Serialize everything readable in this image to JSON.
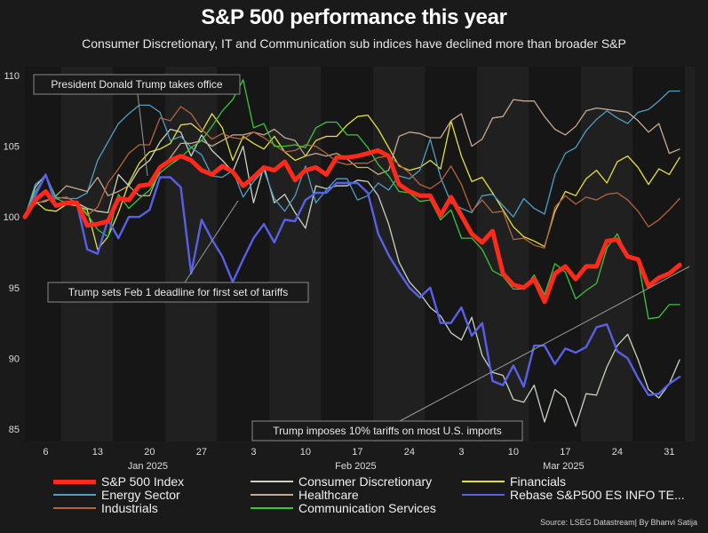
{
  "header": {
    "title": "S&P 500 performance this year",
    "subtitle": "Consumer Discretionary, IT and Communication sub indices have declined more than broader S&P"
  },
  "source": "Source: LSEG Datastream| By Bhanvi Satija",
  "chart_data": {
    "type": "line",
    "title": "S&P 500 performance this year",
    "subtitle": "Consumer Discretionary, IT and Communication sub indices have declined more than broader S&P",
    "xlabel": "",
    "ylabel": "",
    "ylim": [
      84,
      110.5
    ],
    "yticks": [
      85,
      90,
      95,
      100,
      105,
      110
    ],
    "grid": false,
    "background_bands": "alternating weekly shading",
    "x_ticks": [
      {
        "day": 2,
        "label": "6"
      },
      {
        "day": 7,
        "label": "13"
      },
      {
        "day": 12,
        "label": "20"
      },
      {
        "day": 17,
        "label": "27"
      },
      {
        "day": 22,
        "label": "3"
      },
      {
        "day": 27,
        "label": "10"
      },
      {
        "day": 32,
        "label": "17"
      },
      {
        "day": 37,
        "label": "24"
      },
      {
        "day": 42,
        "label": "3"
      },
      {
        "day": 47,
        "label": "10"
      },
      {
        "day": 52,
        "label": "17"
      },
      {
        "day": 57,
        "label": "24"
      },
      {
        "day": 62,
        "label": "31"
      }
    ],
    "month_labels": [
      {
        "day": 12,
        "label": "Jan 2025"
      },
      {
        "day": 32,
        "label": "Feb 2025"
      },
      {
        "day": 52,
        "label": "Mar 2025"
      }
    ],
    "x_range_days": [
      0,
      64
    ],
    "legend_position": "bottom",
    "series": [
      {
        "name": "S&P 500 Index",
        "color": "#ff2a1a",
        "width": 5,
        "values": [
          100,
          101.2,
          101.8,
          100.8,
          101.0,
          101.0,
          99.4,
          99.5,
          99.7,
          101.3,
          101.2,
          102.2,
          102.3,
          103.5,
          104.0,
          104.3,
          104.0,
          103.3,
          103.0,
          103.6,
          103.2,
          102.2,
          102.8,
          103.5,
          103.3,
          103.9,
          102.6,
          103.3,
          103.5,
          103.0,
          104.2,
          104.2,
          104.3,
          104.5,
          104.7,
          104.3,
          102.3,
          101.8,
          101.5,
          101.5,
          100.1,
          101.4,
          100.1,
          98.8,
          98.2,
          99.0,
          96.0,
          95.2,
          95.0,
          95.6,
          94.0,
          96.0,
          96.5,
          95.6,
          96.5,
          96.5,
          98.3,
          98.4,
          97.2,
          97.0,
          95.1,
          95.7,
          96.0,
          96.6
        ]
      },
      {
        "name": "Consumer Discretionary",
        "color": "#c8d4c0",
        "width": 1.3,
        "values": [
          100,
          102.1,
          103.0,
          101.3,
          101.4,
          101.0,
          100.6,
          100.4,
          100.3,
          103.0,
          102.2,
          103.4,
          104.0,
          105.3,
          106.2,
          106.0,
          104.3,
          105.8,
          104.7,
          104.0,
          103.2,
          105.0,
          101.0,
          103.6,
          101.0,
          101.6,
          100.3,
          99.2,
          102.2,
          102.0,
          102.2,
          102.2,
          102.6,
          102.5,
          101.5,
          99.5,
          96.8,
          95.4,
          94.6,
          93.6,
          93.0,
          91.8,
          91.3,
          92.9,
          90.2,
          89.0,
          88.8,
          87.1,
          86.9,
          88.1,
          85.5,
          87.8,
          87.2,
          85.2,
          87.5,
          87.4,
          89.4,
          90.9,
          91.7,
          89.9,
          87.8,
          87.2,
          88.2,
          89.9
        ]
      },
      {
        "name": "Financials",
        "color": "#e3e042",
        "width": 1.3,
        "values": [
          100,
          101.1,
          100.5,
          100.4,
          100.9,
          100.8,
          100.5,
          97.7,
          98.6,
          100.3,
          102.4,
          103.8,
          104.6,
          104.8,
          105.2,
          106.5,
          106.6,
          106.0,
          107.3,
          106.3,
          104.0,
          105.7,
          105.2,
          104.8,
          105.7,
          104.6,
          104.0,
          104.3,
          105.4,
          105.7,
          105.7,
          106.5,
          107.1,
          107.2,
          106.2,
          104.9,
          103.6,
          103.3,
          103.5,
          104.0,
          103.4,
          106.8,
          104.3,
          102.5,
          102.8,
          101.7,
          100.5,
          99.3,
          98.6,
          98.3,
          97.9,
          100.4,
          101.8,
          101.5,
          102.7,
          103.3,
          102.4,
          103.9,
          104.3,
          103.5,
          102.3,
          103.4,
          103.0,
          104.2
        ]
      },
      {
        "name": "Energy Sector",
        "color": "#4f9ec4",
        "width": 1.3,
        "values": [
          100,
          102.3,
          102.9,
          101.4,
          101.3,
          101.3,
          101.7,
          104.0,
          105.3,
          106.6,
          107.3,
          107.9,
          107.9,
          107.4,
          105.4,
          105.7,
          104.9,
          104.4,
          102.9,
          102.8,
          103.3,
          101.4,
          102.5,
          103.3,
          101.3,
          100.4,
          101.5,
          103.6,
          101.0,
          101.9,
          102.7,
          102.7,
          101.2,
          101.5,
          102.4,
          101.9,
          102.9,
          102.7,
          103.3,
          105.5,
          102.8,
          101.0,
          100.6,
          100.3,
          101.5,
          101.6,
          100.8,
          100.0,
          101.3,
          100.6,
          100.2,
          103.0,
          104.5,
          104.9,
          106.1,
          106.9,
          107.5,
          107.0,
          106.6,
          107.4,
          107.6,
          108.2,
          108.9,
          108.9
        ]
      },
      {
        "name": "Healthcare",
        "color": "#c5aa92",
        "width": 1.3,
        "values": [
          100,
          101.0,
          101.1,
          101.5,
          102.2,
          102.0,
          101.8,
          102.8,
          101.5,
          101.8,
          102.2,
          101.5,
          101.5,
          103.3,
          104.2,
          105.2,
          105.2,
          105.4,
          105.0,
          105.4,
          105.8,
          105.8,
          106.0,
          105.8,
          106.2,
          105.6,
          105.4,
          104.3,
          104.5,
          104.3,
          104.5,
          104.1,
          103.5,
          103.5,
          103.0,
          103.3,
          105.7,
          106.0,
          105.9,
          105.6,
          105.6,
          106.8,
          107.3,
          105.0,
          105.5,
          107.0,
          107.1,
          108.3,
          108.2,
          108.2,
          107.1,
          106.2,
          105.8,
          106.4,
          107.5,
          107.7,
          107.6,
          107.5,
          107.4,
          106.8,
          106.0,
          106.6,
          104.5,
          104.8
        ]
      },
      {
        "name": "Rebase S&P500 ES INFO TE...",
        "color": "#5860e8",
        "width": 2.4,
        "values": [
          100,
          101.5,
          103.0,
          100.8,
          101.0,
          101.0,
          97.7,
          97.4,
          99.8,
          98.5,
          100.0,
          100.0,
          100.5,
          102.8,
          102.8,
          102.1,
          96.0,
          99.8,
          98.4,
          97.2,
          95.4,
          97.0,
          98.5,
          99.5,
          98.2,
          99.8,
          99.7,
          101.2,
          101.7,
          101.7,
          102.4,
          102.4,
          102.4,
          101.7,
          98.8,
          97.3,
          96.1,
          95.0,
          94.3,
          95.0,
          92.5,
          92.5,
          93.6,
          91.6,
          92.5,
          88.4,
          88.1,
          89.5,
          88.0,
          90.9,
          90.9,
          89.6,
          90.7,
          90.4,
          90.8,
          92.2,
          92.4,
          90.5,
          90.0,
          88.6,
          87.4,
          87.5,
          88.2,
          88.7
        ]
      },
      {
        "name": "Industrials",
        "color": "#b5643c",
        "width": 1.3,
        "values": [
          100,
          100.9,
          101.2,
          101.3,
          101.4,
          101.0,
          100.1,
          100.7,
          102.4,
          103.4,
          104.5,
          105.1,
          105.1,
          107.0,
          106.8,
          107.8,
          107.3,
          106.2,
          105.5,
          105.9,
          105.6,
          105.5,
          106.0,
          105.6,
          105.1,
          104.6,
          104.7,
          105.1,
          105.0,
          104.5,
          103.9,
          103.7,
          103.8,
          103.8,
          104.2,
          104.3,
          103.7,
          103.1,
          102.3,
          102.0,
          102.5,
          103.6,
          102.3,
          100.4,
          101.2,
          100.3,
          100.4,
          98.4,
          98.5,
          98.0,
          97.8,
          100.7,
          101.5,
          100.9,
          101.4,
          101.2,
          101.6,
          101.7,
          101.2,
          100.4,
          99.3,
          99.8,
          100.5,
          101.3
        ]
      },
      {
        "name": "Communication Services",
        "color": "#3cc43c",
        "width": 1.3,
        "values": [
          100,
          101.8,
          102.9,
          101.3,
          101.0,
          101.0,
          100.2,
          99.1,
          98.6,
          101.6,
          100.6,
          101.3,
          101.9,
          103.1,
          103.7,
          104.2,
          104.9,
          105.4,
          106.4,
          107.5,
          108.3,
          109.7,
          106.3,
          106.6,
          105.0,
          105.0,
          105.1,
          104.9,
          106.3,
          106.7,
          106.7,
          105.8,
          105.8,
          104.9,
          103.7,
          102.9,
          101.8,
          101.7,
          101.1,
          101.2,
          99.8,
          100.5,
          98.5,
          98.5,
          97.7,
          96.2,
          95.8,
          94.9,
          94.9,
          95.9,
          94.5,
          96.7,
          96.1,
          94.2,
          94.8,
          95.3,
          97.8,
          98.8,
          97.2,
          96.9,
          92.8,
          92.9,
          93.8,
          93.8
        ]
      }
    ],
    "annotations": [
      {
        "text": "President Donald Trump takes office",
        "points_to_day": 13
      },
      {
        "text": "Trump sets Feb 1 deadline for first set of tariffs",
        "points_to_day": 21
      },
      {
        "text": "Trump imposes 10% tariffs on most U.S. imports",
        "points_to_day": 63
      }
    ]
  }
}
